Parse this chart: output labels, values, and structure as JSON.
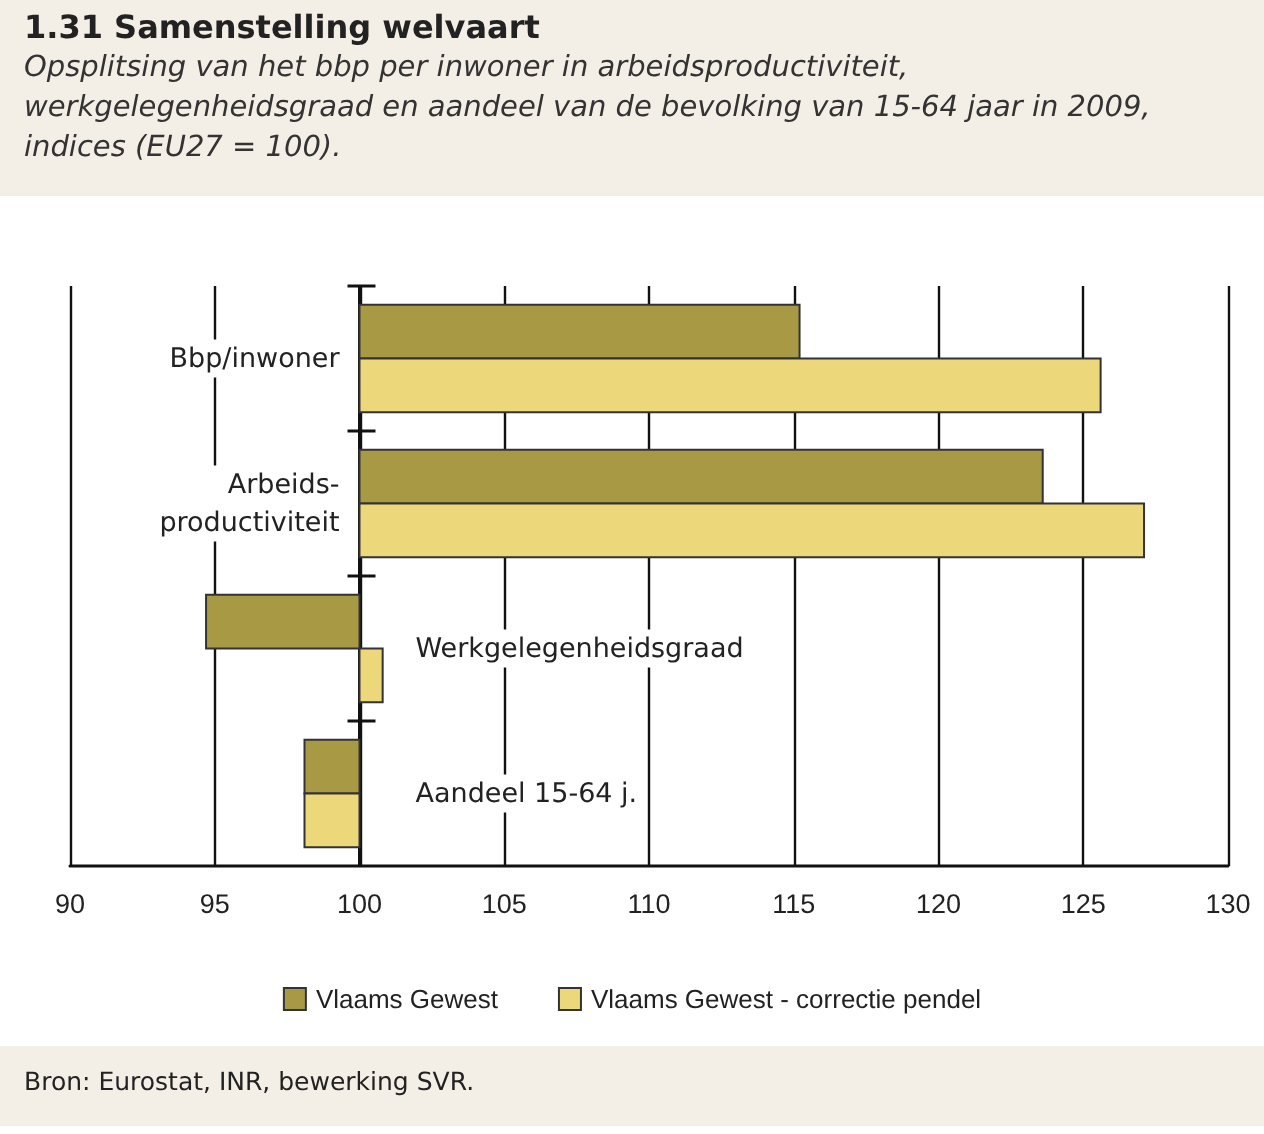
{
  "chart_data": {
    "type": "bar",
    "orientation": "horizontal",
    "title": "1.31 Samenstelling welvaart",
    "subtitle": "Opsplitsing van het bbp per inwoner in arbeidsproductiviteit, werkgelegenheidsgraad en aandeel van de bevolking van 15-64 jaar in 2009, indices (EU27 = 100).",
    "categories": [
      "Bbp/inwoner",
      "Arbeids-\nproductiviteit",
      "Werkgelegenheidsgraad",
      "Aandeel 15-64 j."
    ],
    "series": [
      {
        "name": "Vlaams Gewest",
        "color": "#a89a45",
        "base": [
          100,
          100,
          100,
          100
        ],
        "values": [
          15.2,
          23.6,
          -5.3,
          -1.9
        ]
      },
      {
        "name": "Vlaams Gewest - correctie pendel",
        "color": "#ecd87a",
        "base": [
          100,
          100,
          100,
          100
        ],
        "values": [
          25.6,
          27.1,
          0.8,
          -1.9
        ]
      }
    ],
    "xlim": [
      90,
      130
    ],
    "xticks": [
      90,
      95,
      100,
      105,
      110,
      115,
      120,
      125,
      130
    ],
    "grid": "x",
    "legend": "bottom",
    "annotations": [
      "Bron: Eurostat, INR, bewerking SVR."
    ]
  }
}
